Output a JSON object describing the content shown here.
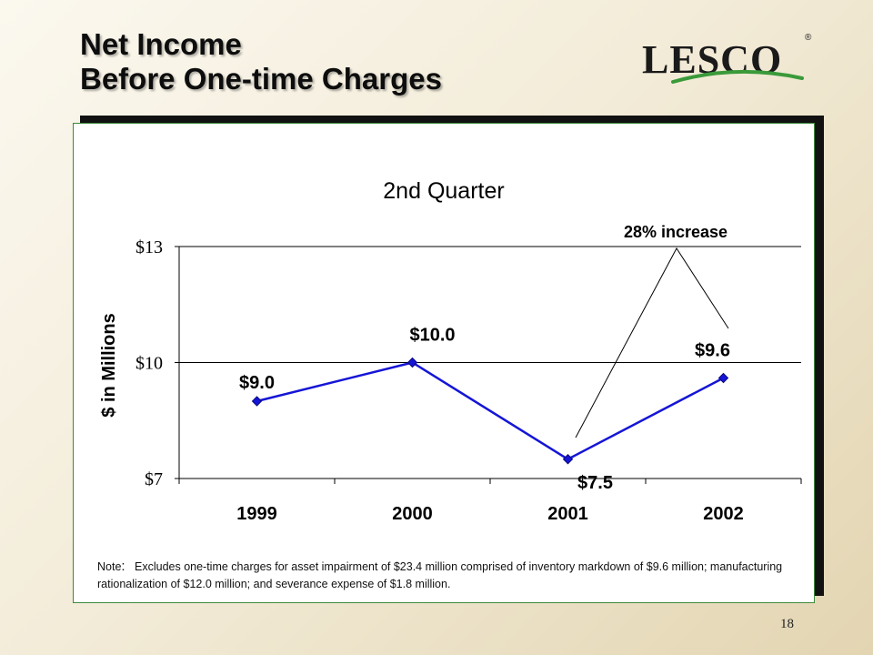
{
  "slide": {
    "title_line1": "Net Income",
    "title_line2": "Before One-time Charges",
    "page_number": "18",
    "logo_text": "LESCO",
    "logo_mark": "®"
  },
  "chart_data": {
    "type": "line",
    "title": "2nd Quarter",
    "ylabel": "$ in Millions",
    "xlabel": "",
    "categories": [
      "1999",
      "2000",
      "2001",
      "2002"
    ],
    "series": [
      {
        "values": [
          9.0,
          10.0,
          7.5,
          9.6
        ],
        "color": "#1515d6"
      }
    ],
    "data_labels": [
      "$9.0",
      "$10.0",
      "$7.5",
      "$9.6"
    ],
    "yticks": [
      {
        "value": 7,
        "label": "$7"
      },
      {
        "value": 10,
        "label": "$10"
      },
      {
        "value": 13,
        "label": "$13"
      }
    ],
    "ylim": [
      7,
      13
    ],
    "grid": true,
    "annotation": "28% increase"
  },
  "note": {
    "label": "Note",
    "colon": ":",
    "text": "Excludes one-time charges for asset impairment of $23.4 million comprised of inventory markdown of $9.6 million; manufacturing rationalization of $12.0 million; and severance expense of $1.8 million."
  },
  "colors": {
    "line": "#1515d6",
    "logo_text": "#1a1a1a",
    "logo_swoosh": "#3a9a3a"
  }
}
